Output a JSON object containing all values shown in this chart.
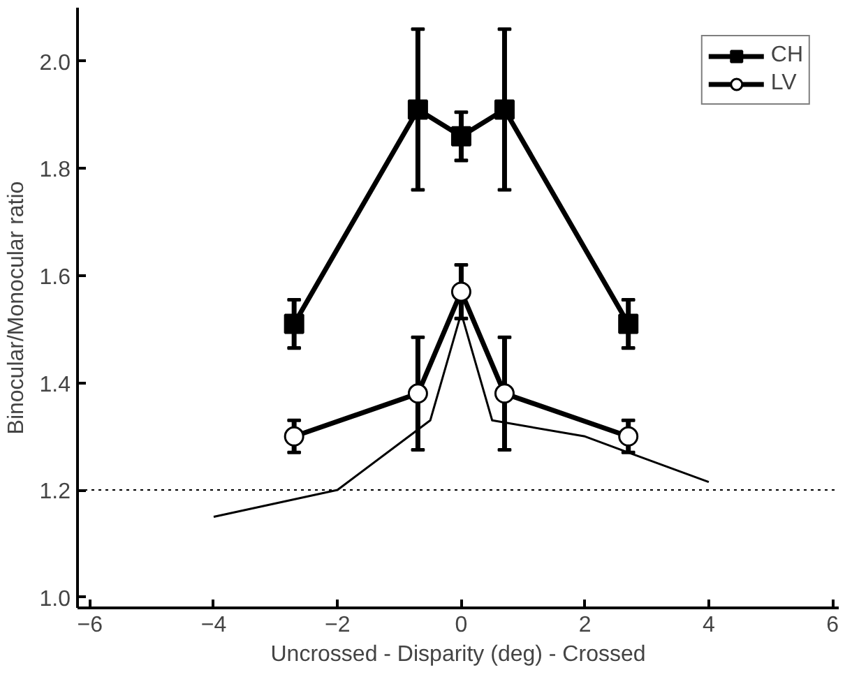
{
  "chart_data": {
    "type": "line",
    "xlabel": "Uncrossed - Disparity (deg) - Crossed",
    "ylabel": "Binocular/Monocular ratio",
    "xlim": [
      -6.2,
      6.1
    ],
    "ylim": [
      0.98,
      2.1
    ],
    "xticks": [
      -6,
      -4,
      -2,
      0,
      2,
      4,
      6
    ],
    "yticks": [
      {
        "value": 1.0,
        "label": "1.0"
      },
      1.2,
      1.4,
      1.6,
      1.8,
      {
        "value": 2.0,
        "label": "2.0"
      }
    ],
    "grid": false,
    "legend": "top right",
    "line_style": "solid",
    "ref_lines": [
      {
        "axis": "y",
        "value": 1.2,
        "color": "#000000",
        "line_style": "dotted"
      }
    ],
    "series": [
      {
        "name": "CH",
        "color": "#000000",
        "marker": "square",
        "x": [
          -2.7,
          -0.7,
          0,
          0.7,
          2.7
        ],
        "values": [
          1.51,
          1.91,
          1.86,
          1.91,
          1.51
        ],
        "errors": [
          0.045,
          0.15,
          0.045,
          0.15,
          0.045
        ]
      },
      {
        "name": "LV",
        "color": "#000000",
        "marker": "circle",
        "x": [
          -2.7,
          -0.7,
          0,
          0.7,
          2.7
        ],
        "values": [
          1.3,
          1.38,
          1.57,
          1.38,
          1.3
        ],
        "errors": [
          0.03,
          0.105,
          0.05,
          0.105,
          0.03
        ]
      },
      {
        "color": "#000000",
        "marker": "none",
        "x": [
          -4,
          -2,
          -0.5,
          0,
          0.5,
          2,
          2.7,
          4
        ],
        "values": [
          1.15,
          1.2,
          1.33,
          1.53,
          1.33,
          1.3,
          1.27,
          1.215
        ]
      }
    ]
  }
}
